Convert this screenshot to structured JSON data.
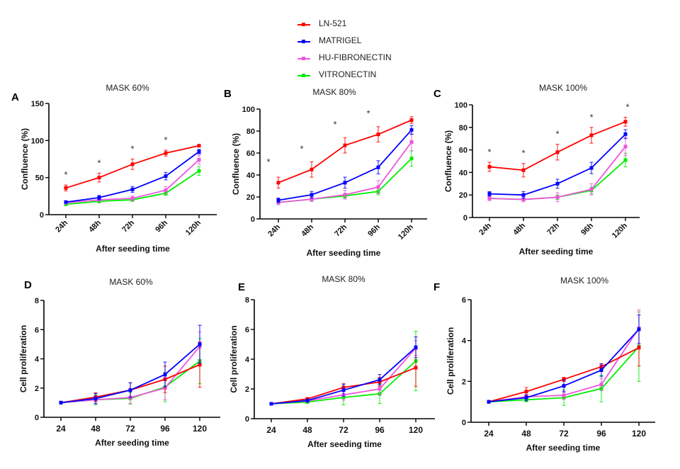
{
  "legend": [
    {
      "name": "LN-521",
      "color": "#ff0000"
    },
    {
      "name": "MATRIGEL",
      "color": "#0000ff"
    },
    {
      "name": "HU-FIBRONECTIN",
      "color": "#ee55dd"
    },
    {
      "name": "VITRONECTIN",
      "color": "#00ee00"
    }
  ],
  "chart_data": [
    {
      "panel": "A",
      "type": "line",
      "title": "MASK 60%",
      "xlabel": "After seeding time",
      "ylabel": "Confluence (%)",
      "categories": [
        "24h",
        "48h",
        "72h",
        "96h",
        "120h"
      ],
      "ylim": [
        0,
        150
      ],
      "yticks": [
        0,
        50,
        100,
        150
      ],
      "rotated_xticks": true,
      "significance": [
        "*",
        "*",
        "*",
        "*",
        ""
      ],
      "series": [
        {
          "name": "LN-521",
          "values": [
            36,
            50,
            68,
            83,
            93
          ],
          "errors": [
            4,
            6,
            7,
            4,
            1
          ]
        },
        {
          "name": "MATRIGEL",
          "values": [
            17,
            23,
            34,
            52,
            85
          ],
          "errors": [
            1,
            3,
            4,
            5,
            3
          ]
        },
        {
          "name": "HU-FIBRONECTIN",
          "values": [
            16,
            20,
            22,
            33,
            74
          ],
          "errors": [
            1,
            2,
            3,
            5,
            6
          ]
        },
        {
          "name": "VITRONECTIN",
          "values": [
            14,
            18,
            20,
            29,
            59
          ],
          "errors": [
            1,
            2,
            2,
            3,
            6
          ]
        }
      ]
    },
    {
      "panel": "B",
      "type": "line",
      "title": "MASK 80%",
      "xlabel": "After seeding time",
      "ylabel": "Confluence (%)",
      "categories": [
        "24h",
        "48h",
        "72h",
        "96h",
        "120h"
      ],
      "ylim": [
        0,
        100
      ],
      "yticks": [
        0,
        20,
        40,
        60,
        80,
        100
      ],
      "rotated_xticks": true,
      "significance": [
        "*",
        "*",
        "*",
        "*",
        ""
      ],
      "series": [
        {
          "name": "LN-521",
          "values": [
            33,
            45,
            67,
            77,
            90
          ],
          "errors": [
            5,
            7,
            7,
            7,
            3
          ]
        },
        {
          "name": "MATRIGEL",
          "values": [
            17,
            22,
            33,
            47,
            81
          ],
          "errors": [
            2,
            3,
            5,
            6,
            4
          ]
        },
        {
          "name": "HU-FIBRONECTIN",
          "values": [
            15,
            18,
            22,
            29,
            70
          ],
          "errors": [
            2,
            2,
            4,
            6,
            8
          ]
        },
        {
          "name": "VITRONECTIN",
          "values": [
            15,
            18,
            21,
            25,
            55
          ],
          "errors": [
            1,
            2,
            2,
            3,
            7
          ]
        }
      ]
    },
    {
      "panel": "C",
      "type": "line",
      "title": "MASK 100%",
      "xlabel": "After seeding time",
      "ylabel": "Confluence (%)",
      "categories": [
        "24h",
        "48h",
        "72h",
        "96h",
        "120h"
      ],
      "ylim": [
        0,
        100
      ],
      "yticks": [
        0,
        20,
        40,
        60,
        80,
        100
      ],
      "rotated_xticks": true,
      "significance": [
        "*",
        "*",
        "*",
        "*",
        "*"
      ],
      "series": [
        {
          "name": "LN-521",
          "values": [
            45,
            42,
            58,
            73,
            85
          ],
          "errors": [
            4,
            6,
            7,
            7,
            4
          ]
        },
        {
          "name": "MATRIGEL",
          "values": [
            21,
            20,
            30,
            44,
            74
          ],
          "errors": [
            2,
            3,
            4,
            5,
            4
          ]
        },
        {
          "name": "HU-FIBRONECTIN",
          "values": [
            17,
            16,
            18,
            25,
            63
          ],
          "errors": [
            2,
            2,
            4,
            5,
            8
          ]
        },
        {
          "name": "VITRONECTIN",
          "values": [
            17,
            16,
            18,
            24,
            51
          ],
          "errors": [
            1,
            1,
            2,
            3,
            6
          ]
        }
      ]
    },
    {
      "panel": "D",
      "type": "line",
      "title": "MASK 60%",
      "xlabel": "After seeding time",
      "ylabel": "Cell proliferation",
      "categories": [
        "24",
        "48",
        "72",
        "96",
        "120"
      ],
      "ylim": [
        0,
        8
      ],
      "yticks": [
        0,
        2,
        4,
        6,
        8
      ],
      "rotated_xticks": false,
      "significance": [
        "",
        "",
        "",
        "",
        ""
      ],
      "series": [
        {
          "name": "LN-521",
          "values": [
            1.0,
            1.38,
            1.86,
            2.6,
            3.6
          ],
          "errors": [
            0,
            0.3,
            0.5,
            0.9,
            1.55
          ]
        },
        {
          "name": "MATRIGEL",
          "values": [
            1.0,
            1.28,
            1.86,
            2.93,
            5.0
          ],
          "errors": [
            0,
            0.35,
            0.5,
            0.85,
            1.3
          ]
        },
        {
          "name": "HU-FIBRONECTIN",
          "values": [
            1.0,
            1.2,
            1.35,
            2.0,
            4.85
          ],
          "errors": [
            0,
            0.25,
            0.4,
            0.8,
            1.0
          ]
        },
        {
          "name": "VITRONECTIN",
          "values": [
            1.0,
            1.2,
            1.3,
            2.07,
            3.85
          ],
          "errors": [
            0,
            0.35,
            0.4,
            1.0,
            1.55
          ]
        }
      ]
    },
    {
      "panel": "E",
      "type": "line",
      "title": "MASK 80%",
      "xlabel": "After seeding time",
      "ylabel": "Cell proliferation",
      "categories": [
        "24",
        "48",
        "72",
        "96",
        "120"
      ],
      "ylim": [
        0,
        8
      ],
      "yticks": [
        0,
        2,
        4,
        6,
        8
      ],
      "rotated_xticks": false,
      "significance": [
        "",
        "",
        "",
        "",
        ""
      ],
      "series": [
        {
          "name": "LN-521",
          "values": [
            1.0,
            1.33,
            2.1,
            2.47,
            3.43
          ],
          "errors": [
            0,
            0.08,
            0.25,
            0.3,
            1.25
          ]
        },
        {
          "name": "MATRIGEL",
          "values": [
            1.0,
            1.22,
            1.92,
            2.62,
            4.8
          ],
          "errors": [
            0,
            0.1,
            0.4,
            0.35,
            0.7
          ]
        },
        {
          "name": "HU-FIBRONECTIN",
          "values": [
            1.0,
            1.2,
            1.6,
            2.0,
            4.75
          ],
          "errors": [
            0,
            0.1,
            0.35,
            0.4,
            0.5
          ]
        },
        {
          "name": "VITRONECTIN",
          "values": [
            1.0,
            1.12,
            1.43,
            1.67,
            3.88
          ],
          "errors": [
            0,
            0.08,
            0.5,
            0.65,
            2.0
          ]
        }
      ]
    },
    {
      "panel": "F",
      "type": "line",
      "title": "MASK 100%",
      "xlabel": "After seeding time",
      "ylabel": "Cell proliferation",
      "categories": [
        "24",
        "48",
        "72",
        "96",
        "120"
      ],
      "ylim": [
        0,
        6
      ],
      "yticks": [
        0,
        2,
        4,
        6
      ],
      "rotated_xticks": false,
      "significance": [
        "",
        "",
        "",
        "",
        ""
      ],
      "series": [
        {
          "name": "LN-521",
          "values": [
            1.0,
            1.5,
            2.1,
            2.72,
            3.65
          ],
          "errors": [
            0,
            0.2,
            0.1,
            0.15,
            0.9
          ]
        },
        {
          "name": "MATRIGEL",
          "values": [
            1.0,
            1.2,
            1.78,
            2.55,
            4.55
          ],
          "errors": [
            0,
            0.15,
            0.3,
            0.3,
            0.7
          ]
        },
        {
          "name": "HU-FIBRONECTIN",
          "values": [
            1.0,
            1.25,
            1.32,
            1.85,
            4.6
          ],
          "errors": [
            0,
            0.1,
            0.2,
            0.3,
            0.9
          ]
        },
        {
          "name": "VITRONECTIN",
          "values": [
            1.0,
            1.1,
            1.2,
            1.65,
            3.7
          ],
          "errors": [
            0,
            0.1,
            0.38,
            0.65,
            1.7
          ]
        }
      ]
    }
  ]
}
